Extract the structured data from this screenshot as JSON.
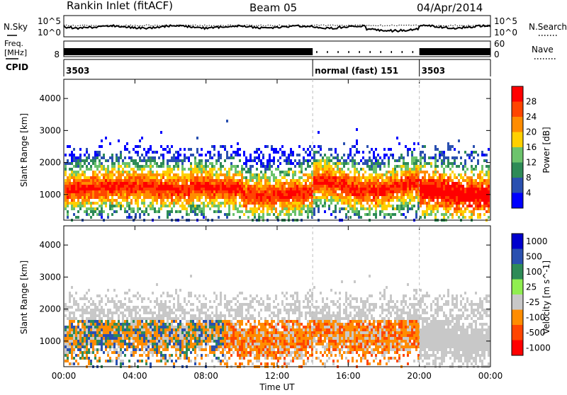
{
  "header": {
    "station": "Rankin Inlet (fitACF)",
    "beam": "Beam 05",
    "date": "04/Apr/2014"
  },
  "top_panel": {
    "left_label": "N.Sky",
    "left_ticks": [
      "10^5",
      "10^0"
    ],
    "right_ticks": [
      "10^5",
      "10^0"
    ],
    "right_label": "N.Search"
  },
  "freq_panel": {
    "left_label_1": "Freq.",
    "left_label_2": "[MHz]",
    "left_tick": "8",
    "right_ticks": [
      "60",
      "0"
    ],
    "right_label": "Nave"
  },
  "cpid_panel": {
    "label": "CPID",
    "segments": [
      {
        "text": "3503",
        "start_hour": 0
      },
      {
        "text": "normal (fast) 151",
        "start_hour": 14
      },
      {
        "text": "3503",
        "start_hour": 20
      }
    ]
  },
  "time_axis": {
    "xlabel": "Time UT",
    "ticks": [
      "00:00",
      "04:00",
      "08:00",
      "12:00",
      "16:00",
      "20:00",
      "00:00"
    ]
  },
  "colors": {
    "power": [
      "#0000ff",
      "#2a50b0",
      "#2e8b57",
      "#6cc36c",
      "#ffd000",
      "#ff8c00",
      "#ff4500",
      "#ff0000"
    ],
    "velocity": [
      "#ff0000",
      "#ff4500",
      "#ff8c00",
      "#c8c8c8",
      "#90ee50",
      "#2e8b57",
      "#2a50b0",
      "#0000cd"
    ]
  },
  "chart_data": [
    {
      "type": "heatmap",
      "name": "power",
      "xlabel": "Time UT",
      "ylabel": "Slant Range [km]",
      "xlim": [
        0,
        24
      ],
      "ylim": [
        200,
        4600
      ],
      "yticks": [
        "1000",
        "2000",
        "3000",
        "4000"
      ],
      "colorbar": {
        "label": "Power [dB]",
        "ticks": [
          "4",
          "8",
          "12",
          "16",
          "20",
          "24",
          "28"
        ]
      }
    },
    {
      "type": "heatmap",
      "name": "velocity",
      "xlabel": "Time UT",
      "ylabel": "Slant Range [km]",
      "xlim": [
        0,
        24
      ],
      "ylim": [
        200,
        4600
      ],
      "yticks": [
        "1000",
        "2000",
        "3000",
        "4000"
      ],
      "colorbar": {
        "label": "Velocity [m s^-1]",
        "ticks": [
          "1000",
          "500",
          "100",
          "25",
          "-25",
          "-100",
          "-500",
          "-1000"
        ]
      }
    }
  ]
}
